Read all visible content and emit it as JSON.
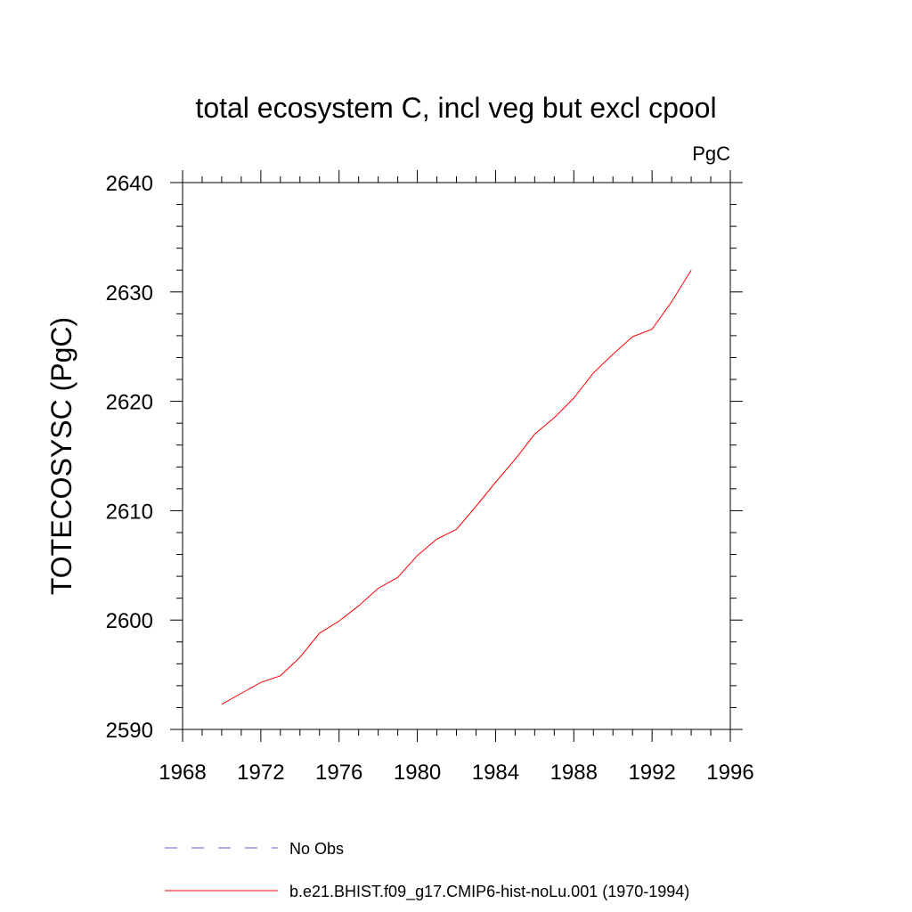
{
  "chart_data": {
    "type": "line",
    "title": "total ecosystem C, incl veg but excl cpool",
    "units": "PgC",
    "xlabel": "",
    "ylabel": "TOTECOSYSC  (PgC)",
    "xlim": [
      1968,
      1996
    ],
    "ylim": [
      2590,
      2640
    ],
    "xticks": [
      1968,
      1972,
      1976,
      1980,
      1984,
      1988,
      1992,
      1996
    ],
    "yticks": [
      2590,
      2600,
      2610,
      2620,
      2630,
      2640
    ],
    "grid": false,
    "legend_position": "bottom",
    "x": [
      1970,
      1971,
      1972,
      1973,
      1974,
      1975,
      1976,
      1977,
      1978,
      1979,
      1980,
      1981,
      1982,
      1983,
      1984,
      1985,
      1986,
      1987,
      1988,
      1989,
      1990,
      1991,
      1992,
      1993,
      1994
    ],
    "series": [
      {
        "name": "b.e21.BHIST.f09_g17.CMIP6-hist-noLu.001 (1970-1994)",
        "color": "#ff0000",
        "style": "solid",
        "values": [
          2592.3,
          2593.3,
          2594.3,
          2594.9,
          2596.6,
          2598.8,
          2599.9,
          2601.3,
          2602.9,
          2603.9,
          2605.9,
          2607.4,
          2608.3,
          2610.4,
          2612.6,
          2614.7,
          2617.0,
          2618.5,
          2620.3,
          2622.6,
          2624.3,
          2625.9,
          2626.6,
          2629.1,
          2632.0
        ]
      }
    ],
    "legend": [
      {
        "label": "No Obs",
        "color": "#6a5acd",
        "style": "dashed"
      },
      {
        "label": "b.e21.BHIST.f09_g17.CMIP6-hist-noLu.001 (1970-1994)",
        "color": "#ff0000",
        "style": "solid"
      }
    ]
  }
}
